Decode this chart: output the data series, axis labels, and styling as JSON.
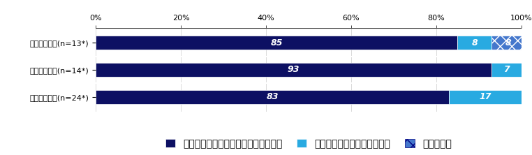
{
  "categories": [
    "身体的な状況(n=13*)",
    "精神的な状況(n=14*)",
    "経済的な状況(n=24*)"
  ],
  "series": [
    {
      "label": "事件に関連する問題によって悪化した",
      "values": [
        85,
        93,
        83
      ],
      "color": "#0d1063",
      "hatch": null
    },
    {
      "label": "事件以外の出来事で悪化した",
      "values": [
        8,
        7,
        17
      ],
      "color": "#29aae1",
      "hatch": null
    },
    {
      "label": "わからない",
      "values": [
        8,
        0,
        0
      ],
      "color": "#4477cc",
      "hatch": "xx"
    }
  ],
  "xlim": [
    0,
    100
  ],
  "xticks": [
    0,
    20,
    40,
    60,
    80,
    100
  ],
  "xticklabels": [
    "0%",
    "20%",
    "40%",
    "60%",
    "80%",
    "100%"
  ],
  "background_color": "#ffffff",
  "bar_height": 0.52,
  "label_fontsize": 9,
  "tick_fontsize": 8,
  "legend_fontsize": 8
}
